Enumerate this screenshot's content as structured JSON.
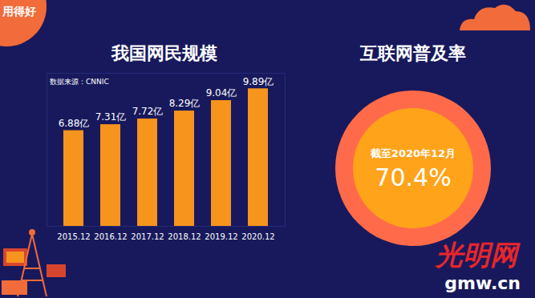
{
  "badge": "用得好",
  "logo": [
    "光明网",
    "gmw.cn"
  ],
  "chart_data": [
    {
      "type": "bar",
      "title": "我国网民规模",
      "subtitle": "数据来源：CNNIC",
      "categories": [
        "2015.12",
        "2016.12",
        "2017.12",
        "2018.12",
        "2019.12",
        "2020.12"
      ],
      "values": [
        6.88,
        7.31,
        7.72,
        8.29,
        9.04,
        9.89
      ],
      "value_labels": [
        "6.88亿",
        "7.31亿",
        "7.72亿",
        "8.29亿",
        "9.04亿",
        "9.89亿"
      ],
      "data_labels": true,
      "tick_labels": "x",
      "color": "#f7941d",
      "ylim": [
        0,
        11
      ],
      "grid": false
    },
    {
      "type": "indicator",
      "title": "互联网普及率",
      "subtitle": "截至2020年12月",
      "values": [
        70.4
      ],
      "value_labels": [
        "70.4%"
      ],
      "data_labels": true,
      "color": "#ffa31a"
    }
  ]
}
